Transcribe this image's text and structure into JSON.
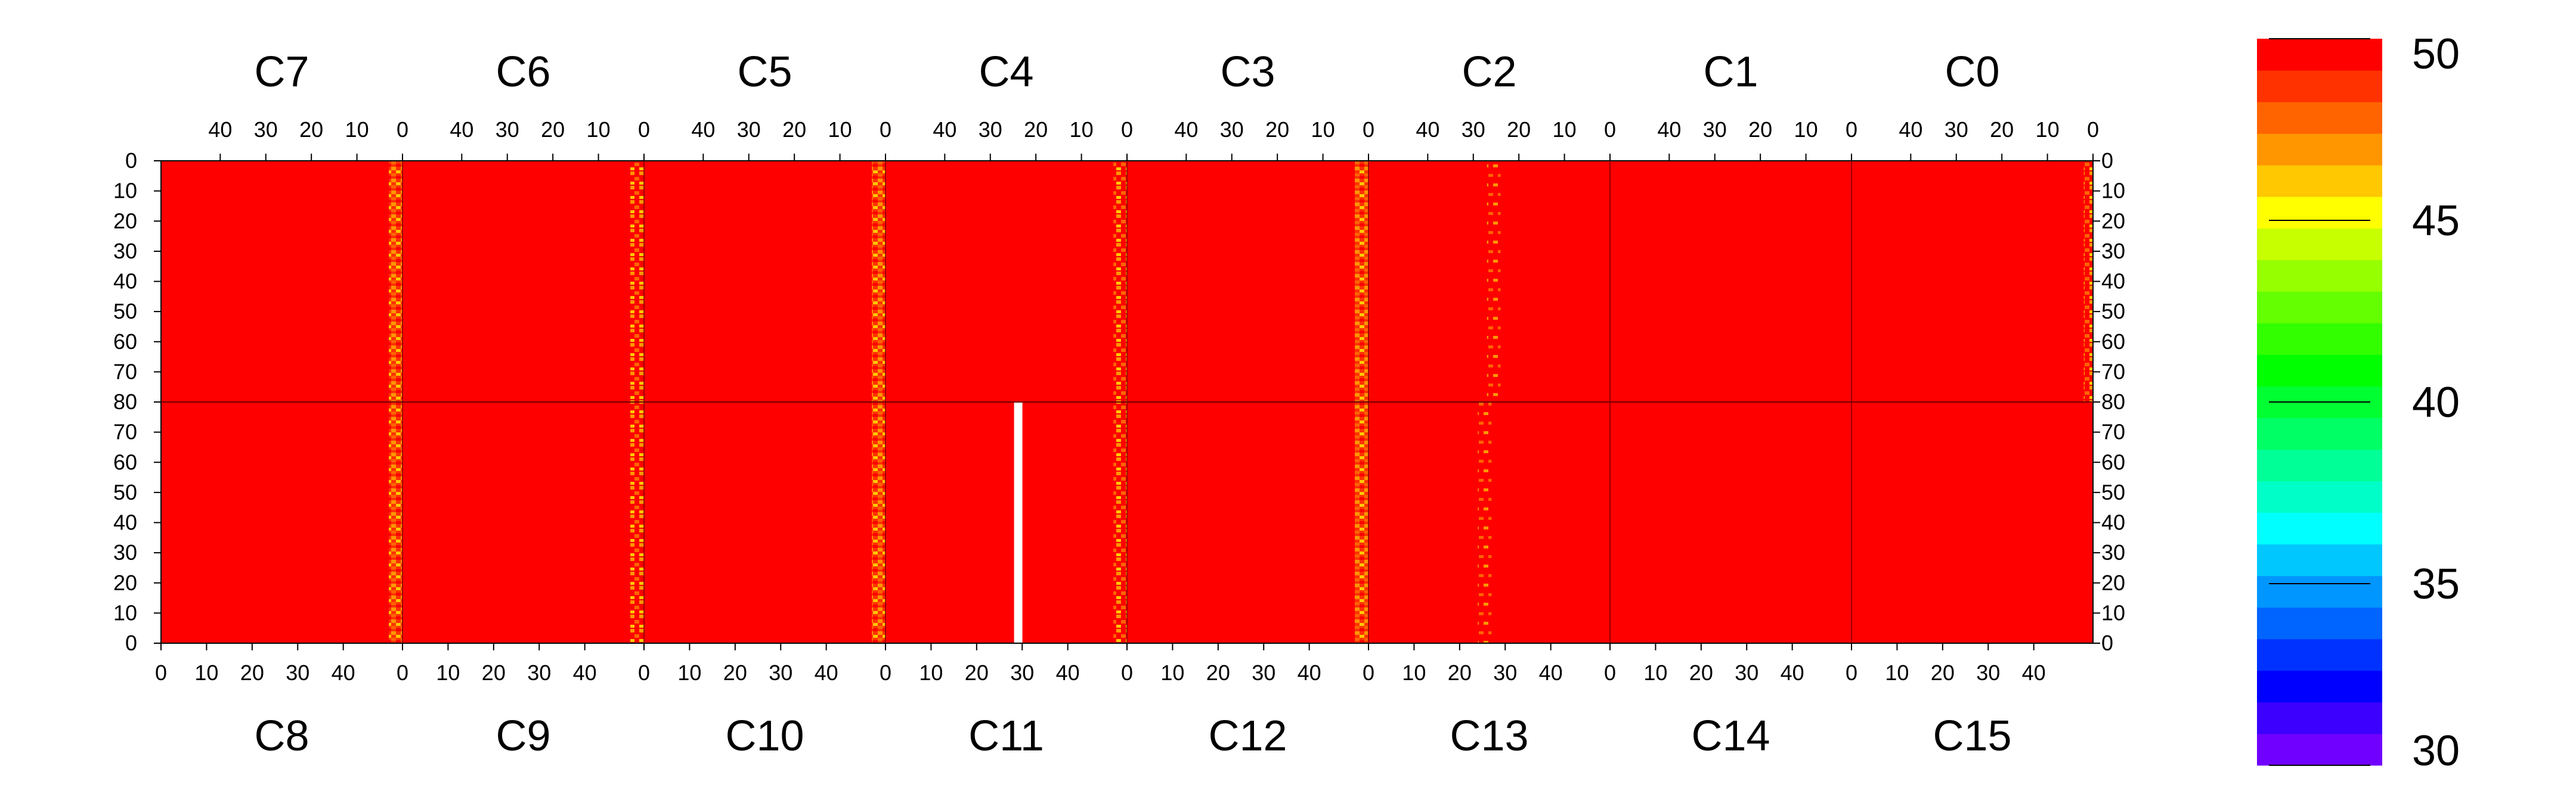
{
  "chart_data": {
    "type": "heatmap",
    "title": "",
    "top_half": {
      "groups": [
        "C7",
        "C6",
        "C5",
        "C4",
        "C3",
        "C2",
        "C1",
        "C0"
      ],
      "x_ticks": [
        "40",
        "30",
        "20",
        "10",
        "0"
      ],
      "y_ticks": [
        "0",
        "10",
        "20",
        "30",
        "40",
        "50",
        "60",
        "70",
        "80"
      ]
    },
    "bottom_half": {
      "groups": [
        "C8",
        "C9",
        "C10",
        "C11",
        "C12",
        "C13",
        "C14",
        "C15"
      ],
      "x_ticks": [
        "0",
        "10",
        "20",
        "30",
        "40"
      ],
      "y_ticks": [
        "80",
        "70",
        "60",
        "50",
        "40",
        "30",
        "20",
        "10",
        "0"
      ]
    },
    "channels_per_group": 53,
    "rows_per_half": 80,
    "baseline_value": 50,
    "hot_bands": [
      {
        "half": "top",
        "group": "C7",
        "x_from": 0,
        "x_to": 3,
        "level": "strong"
      },
      {
        "half": "top",
        "group": "C6",
        "x_from": 0,
        "x_to": 3,
        "level": "medium"
      },
      {
        "half": "top",
        "group": "C5",
        "x_from": 0,
        "x_to": 3,
        "level": "strong"
      },
      {
        "half": "top",
        "group": "C4",
        "x_from": 0,
        "x_to": 3,
        "level": "medium"
      },
      {
        "half": "top",
        "group": "C3",
        "x_from": 0,
        "x_to": 3,
        "level": "strong"
      },
      {
        "half": "top",
        "group": "C2",
        "x_from": 24,
        "x_to": 27,
        "level": "weak"
      },
      {
        "half": "top",
        "group": "C0",
        "x_from": 0,
        "x_to": 2,
        "level": "medium"
      },
      {
        "half": "bottom",
        "group": "C8",
        "x_from": 50,
        "x_to": 53,
        "level": "strong"
      },
      {
        "half": "bottom",
        "group": "C9",
        "x_from": 50,
        "x_to": 53,
        "level": "medium"
      },
      {
        "half": "bottom",
        "group": "C10",
        "x_from": 50,
        "x_to": 53,
        "level": "strong"
      },
      {
        "half": "bottom",
        "group": "C11",
        "x_from": 50,
        "x_to": 53,
        "level": "medium"
      },
      {
        "half": "bottom",
        "group": "C12",
        "x_from": 50,
        "x_to": 53,
        "level": "strong"
      },
      {
        "half": "bottom",
        "group": "C13",
        "x_from": 24,
        "x_to": 27,
        "level": "weak"
      }
    ],
    "dead_channel": {
      "half": "bottom",
      "group": "C11",
      "x": 29
    },
    "colorbar": {
      "min": 30,
      "max": 50,
      "tick_labels": [
        "50",
        "45",
        "40",
        "35",
        "30"
      ],
      "colors": [
        "#7000ff",
        "#3c00ff",
        "#0000ff",
        "#0032ff",
        "#0064ff",
        "#0096ff",
        "#00c8ff",
        "#00ffff",
        "#00ffc8",
        "#00ff96",
        "#00ff64",
        "#00ff32",
        "#00ff00",
        "#32ff00",
        "#64ff00",
        "#96ff00",
        "#c8ff00",
        "#ffff00",
        "#ffc800",
        "#ff9600",
        "#ff6400",
        "#ff3200",
        "#ff0000"
      ]
    }
  }
}
